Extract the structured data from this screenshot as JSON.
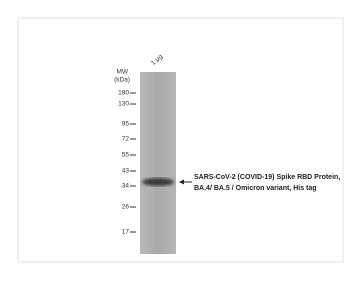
{
  "lane_label": "1 μg",
  "mw_label": {
    "line1": "MW",
    "line2": "(kDa)"
  },
  "markers": [
    "180",
    "130",
    "95",
    "72",
    "55",
    "43",
    "34",
    "26",
    "17"
  ],
  "band_label": {
    "line1": "SARS-CoV-2 (COVID-19) Spike RBD Protein,",
    "line2": "BA.4/ BA.5 / Omicron variant, His tag"
  }
}
